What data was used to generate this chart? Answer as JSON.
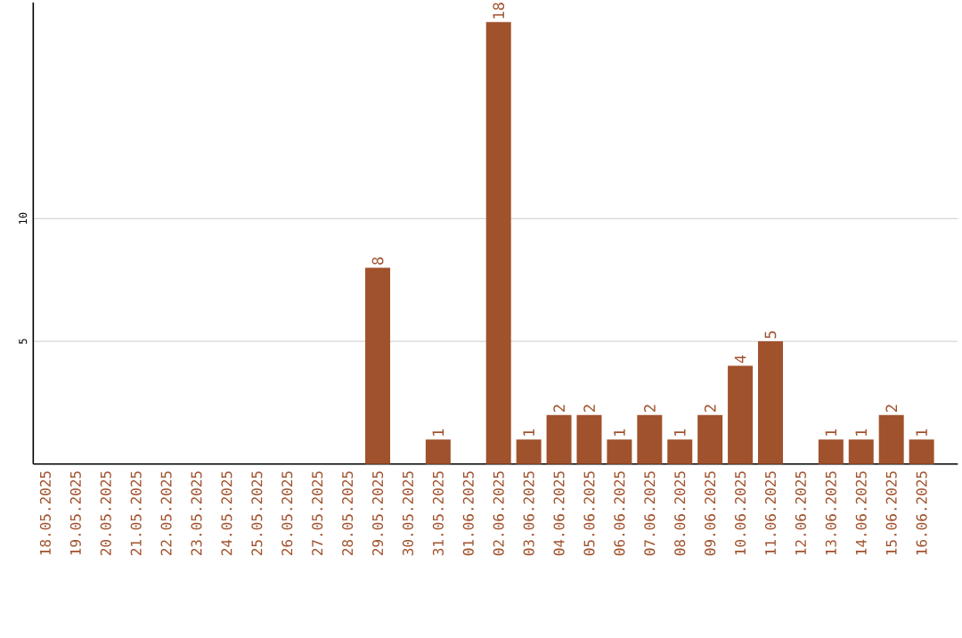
{
  "chart_data": {
    "type": "bar",
    "color": "#a0522d",
    "categories": [
      "18.05.2025",
      "19.05.2025",
      "20.05.2025",
      "21.05.2025",
      "22.05.2025",
      "23.05.2025",
      "24.05.2025",
      "25.05.2025",
      "26.05.2025",
      "27.05.2025",
      "28.05.2025",
      "29.05.2025",
      "30.05.2025",
      "31.05.2025",
      "01.06.2025",
      "02.06.2025",
      "03.06.2025",
      "04.06.2025",
      "05.06.2025",
      "06.06.2025",
      "07.06.2025",
      "08.06.2025",
      "09.06.2025",
      "10.06.2025",
      "11.06.2025",
      "12.06.2025",
      "13.06.2025",
      "14.06.2025",
      "15.06.2025",
      "16.06.2025"
    ],
    "values": [
      0,
      0,
      0,
      0,
      0,
      0,
      0,
      0,
      0,
      0,
      0,
      8,
      0,
      1,
      0,
      18,
      1,
      2,
      2,
      1,
      2,
      1,
      2,
      4,
      5,
      0,
      1,
      1,
      2,
      1
    ],
    "value_labels": [
      null,
      null,
      null,
      null,
      null,
      null,
      null,
      null,
      null,
      null,
      null,
      "8",
      null,
      "1",
      null,
      "18",
      "1",
      "2",
      "2",
      "1",
      "2",
      "1",
      "2",
      "4",
      "5",
      null,
      "1",
      "1",
      "2",
      "1"
    ],
    "ylim": [
      0,
      18.8
    ],
    "yticks": [
      5,
      10
    ],
    "grid": "y"
  }
}
